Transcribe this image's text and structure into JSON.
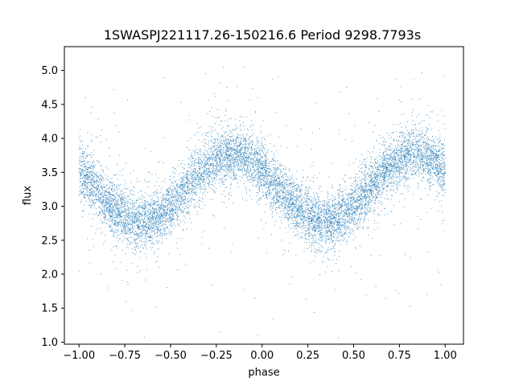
{
  "chart_data": {
    "type": "scatter",
    "title": "1SWASPJ221117.26-150216.6 Period 9298.7793s",
    "xlabel": "phase",
    "ylabel": "flux",
    "xlim": [
      -1.08,
      1.1
    ],
    "ylim": [
      0.97,
      5.35
    ],
    "xticks": [
      -1.0,
      -0.75,
      -0.5,
      -0.25,
      0.0,
      0.25,
      0.5,
      0.75,
      1.0
    ],
    "xtick_labels": [
      "−1.00",
      "−0.75",
      "−0.50",
      "−0.25",
      "0.00",
      "0.25",
      "0.50",
      "0.75",
      "1.00"
    ],
    "yticks": [
      1.0,
      1.5,
      2.0,
      2.5,
      3.0,
      3.5,
      4.0,
      4.5,
      5.0
    ],
    "ytick_labels": [
      "1.0",
      "1.5",
      "2.0",
      "2.5",
      "3.0",
      "3.5",
      "4.0",
      "4.5",
      "5.0"
    ],
    "grid": false,
    "marker_color": "#1f77b4",
    "series": [
      {
        "kind": "phase-folded light curve (dense)",
        "x_range": [
          -1.0,
          1.0
        ],
        "mean_flux": 3.27,
        "semi_amplitude": 0.5,
        "minimum_phase": -0.64,
        "maximum_phase": -0.16,
        "band_halfwidth": 0.32,
        "outlier_flux_range": [
          1.05,
          5.05
        ]
      }
    ],
    "sample_points": [
      {
        "x": -1.0,
        "y": 3.55
      },
      {
        "x": -0.9,
        "y": 3.25
      },
      {
        "x": -0.75,
        "y": 2.92
      },
      {
        "x": -0.64,
        "y": 2.77
      },
      {
        "x": -0.5,
        "y": 2.95
      },
      {
        "x": -0.4,
        "y": 3.2
      },
      {
        "x": -0.25,
        "y": 3.55
      },
      {
        "x": -0.16,
        "y": 3.72
      },
      {
        "x": 0.0,
        "y": 3.45
      },
      {
        "x": 0.1,
        "y": 3.15
      },
      {
        "x": 0.25,
        "y": 2.88
      },
      {
        "x": 0.36,
        "y": 2.77
      },
      {
        "x": 0.5,
        "y": 2.97
      },
      {
        "x": 0.6,
        "y": 3.2
      },
      {
        "x": 0.75,
        "y": 3.55
      },
      {
        "x": 0.84,
        "y": 3.72
      },
      {
        "x": 1.0,
        "y": 3.5
      }
    ]
  }
}
